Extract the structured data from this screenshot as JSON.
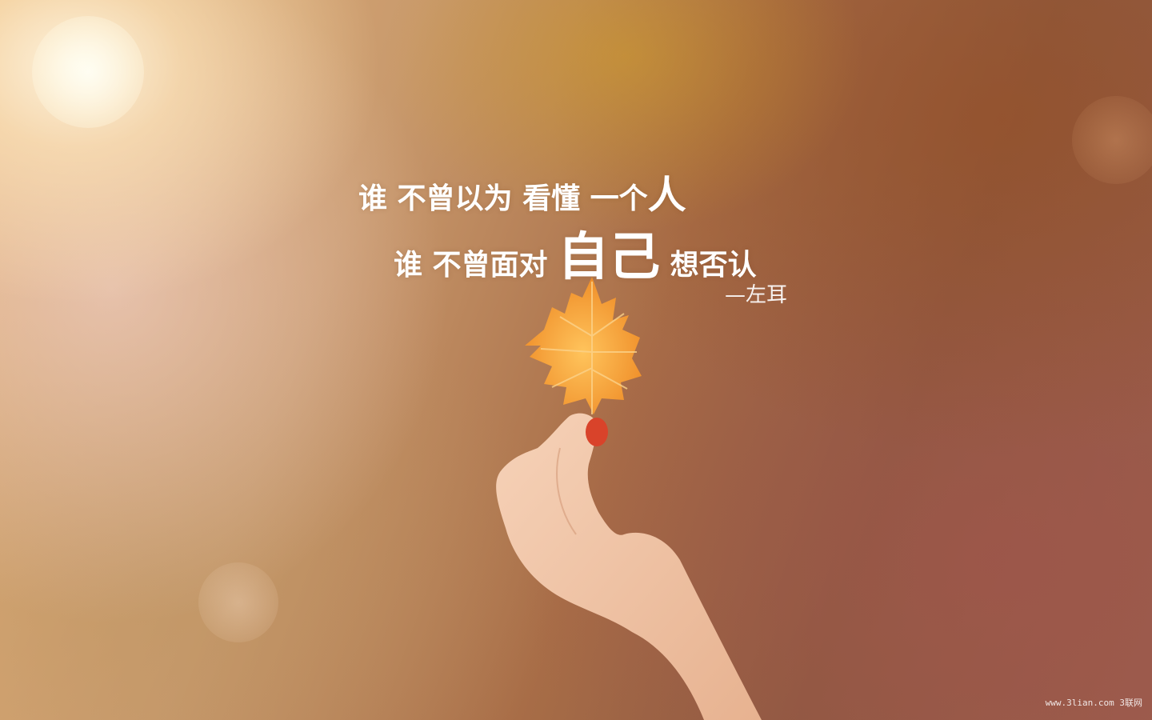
{
  "quote": {
    "line1_a": "谁 不曾以为 看懂 一个",
    "line1_b": "人",
    "line2_a": "谁 不曾面对 ",
    "line2_b": "自己",
    "line2_c": " 想否认"
  },
  "author": "—左耳",
  "watermark": "www.3lian.com 3联网",
  "colors": {
    "leaf": "#f2a13a",
    "leaf_vein": "#fbd28a",
    "skin": "#f2c6a6",
    "nail": "#d9432a"
  }
}
